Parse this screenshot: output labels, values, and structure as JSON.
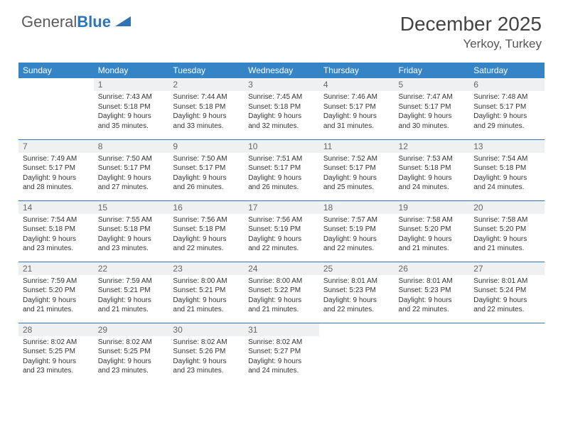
{
  "brand": {
    "name_a": "General",
    "name_b": "Blue"
  },
  "title": "December 2025",
  "location": "Yerkoy, Turkey",
  "colors": {
    "header_bg": "#3585c6",
    "header_text": "#ffffff",
    "daynum_bg": "#eef0f1",
    "border": "#2d74b8",
    "text": "#333333",
    "logo_gray": "#5a5a5a",
    "logo_blue": "#2d74b8"
  },
  "weekdays": [
    "Sunday",
    "Monday",
    "Tuesday",
    "Wednesday",
    "Thursday",
    "Friday",
    "Saturday"
  ],
  "start_offset": 1,
  "days": [
    {
      "n": 1,
      "sr": "7:43 AM",
      "ss": "5:18 PM",
      "dl": "9 hours and 35 minutes."
    },
    {
      "n": 2,
      "sr": "7:44 AM",
      "ss": "5:18 PM",
      "dl": "9 hours and 33 minutes."
    },
    {
      "n": 3,
      "sr": "7:45 AM",
      "ss": "5:18 PM",
      "dl": "9 hours and 32 minutes."
    },
    {
      "n": 4,
      "sr": "7:46 AM",
      "ss": "5:17 PM",
      "dl": "9 hours and 31 minutes."
    },
    {
      "n": 5,
      "sr": "7:47 AM",
      "ss": "5:17 PM",
      "dl": "9 hours and 30 minutes."
    },
    {
      "n": 6,
      "sr": "7:48 AM",
      "ss": "5:17 PM",
      "dl": "9 hours and 29 minutes."
    },
    {
      "n": 7,
      "sr": "7:49 AM",
      "ss": "5:17 PM",
      "dl": "9 hours and 28 minutes."
    },
    {
      "n": 8,
      "sr": "7:50 AM",
      "ss": "5:17 PM",
      "dl": "9 hours and 27 minutes."
    },
    {
      "n": 9,
      "sr": "7:50 AM",
      "ss": "5:17 PM",
      "dl": "9 hours and 26 minutes."
    },
    {
      "n": 10,
      "sr": "7:51 AM",
      "ss": "5:17 PM",
      "dl": "9 hours and 26 minutes."
    },
    {
      "n": 11,
      "sr": "7:52 AM",
      "ss": "5:17 PM",
      "dl": "9 hours and 25 minutes."
    },
    {
      "n": 12,
      "sr": "7:53 AM",
      "ss": "5:18 PM",
      "dl": "9 hours and 24 minutes."
    },
    {
      "n": 13,
      "sr": "7:54 AM",
      "ss": "5:18 PM",
      "dl": "9 hours and 24 minutes."
    },
    {
      "n": 14,
      "sr": "7:54 AM",
      "ss": "5:18 PM",
      "dl": "9 hours and 23 minutes."
    },
    {
      "n": 15,
      "sr": "7:55 AM",
      "ss": "5:18 PM",
      "dl": "9 hours and 23 minutes."
    },
    {
      "n": 16,
      "sr": "7:56 AM",
      "ss": "5:18 PM",
      "dl": "9 hours and 22 minutes."
    },
    {
      "n": 17,
      "sr": "7:56 AM",
      "ss": "5:19 PM",
      "dl": "9 hours and 22 minutes."
    },
    {
      "n": 18,
      "sr": "7:57 AM",
      "ss": "5:19 PM",
      "dl": "9 hours and 22 minutes."
    },
    {
      "n": 19,
      "sr": "7:58 AM",
      "ss": "5:20 PM",
      "dl": "9 hours and 21 minutes."
    },
    {
      "n": 20,
      "sr": "7:58 AM",
      "ss": "5:20 PM",
      "dl": "9 hours and 21 minutes."
    },
    {
      "n": 21,
      "sr": "7:59 AM",
      "ss": "5:20 PM",
      "dl": "9 hours and 21 minutes."
    },
    {
      "n": 22,
      "sr": "7:59 AM",
      "ss": "5:21 PM",
      "dl": "9 hours and 21 minutes."
    },
    {
      "n": 23,
      "sr": "8:00 AM",
      "ss": "5:21 PM",
      "dl": "9 hours and 21 minutes."
    },
    {
      "n": 24,
      "sr": "8:00 AM",
      "ss": "5:22 PM",
      "dl": "9 hours and 21 minutes."
    },
    {
      "n": 25,
      "sr": "8:01 AM",
      "ss": "5:23 PM",
      "dl": "9 hours and 22 minutes."
    },
    {
      "n": 26,
      "sr": "8:01 AM",
      "ss": "5:23 PM",
      "dl": "9 hours and 22 minutes."
    },
    {
      "n": 27,
      "sr": "8:01 AM",
      "ss": "5:24 PM",
      "dl": "9 hours and 22 minutes."
    },
    {
      "n": 28,
      "sr": "8:02 AM",
      "ss": "5:25 PM",
      "dl": "9 hours and 23 minutes."
    },
    {
      "n": 29,
      "sr": "8:02 AM",
      "ss": "5:25 PM",
      "dl": "9 hours and 23 minutes."
    },
    {
      "n": 30,
      "sr": "8:02 AM",
      "ss": "5:26 PM",
      "dl": "9 hours and 23 minutes."
    },
    {
      "n": 31,
      "sr": "8:02 AM",
      "ss": "5:27 PM",
      "dl": "9 hours and 24 minutes."
    }
  ],
  "labels": {
    "sunrise": "Sunrise:",
    "sunset": "Sunset:",
    "daylight": "Daylight:"
  }
}
